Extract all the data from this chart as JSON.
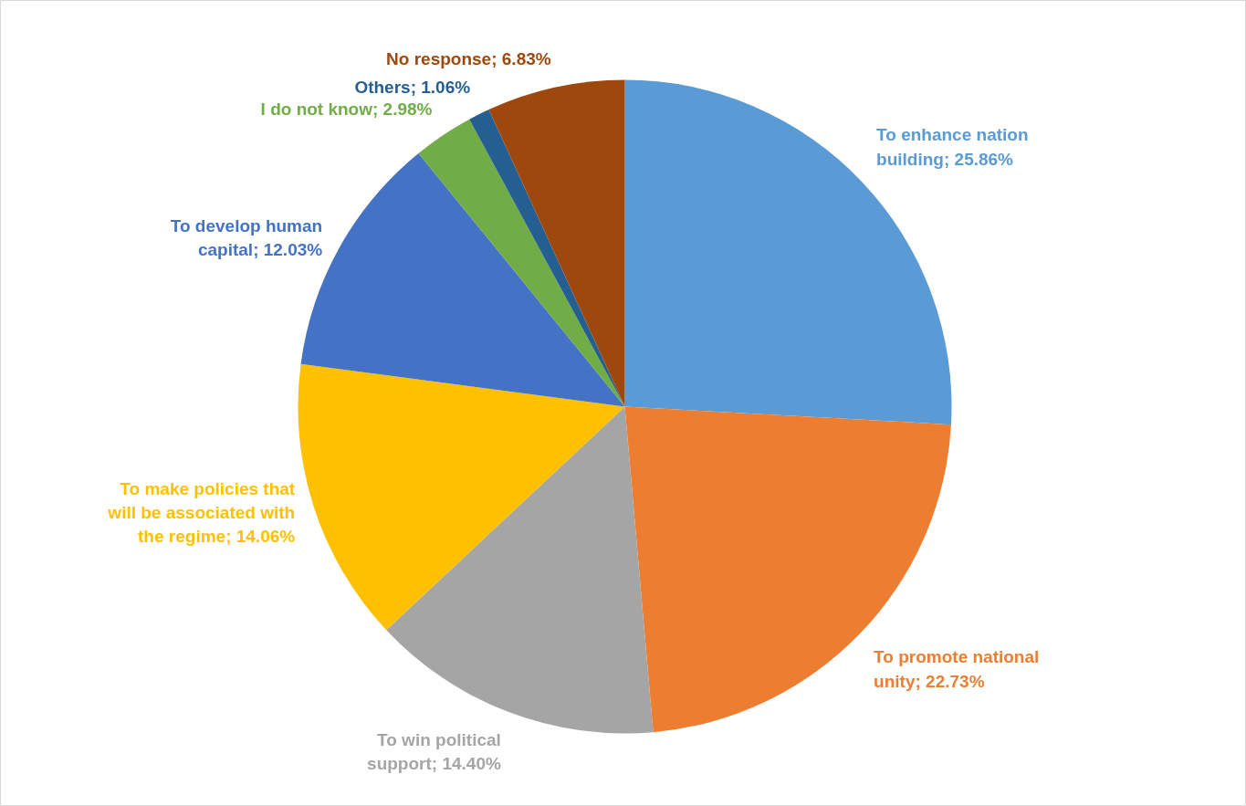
{
  "chart_data": {
    "type": "pie",
    "categories": [
      "To enhance nation building",
      "To promote national unity",
      "To win political support",
      "To make policies that will be associated with the regime",
      "To develop human capital",
      "I do not know",
      "Others",
      "No response"
    ],
    "values": [
      25.86,
      22.73,
      14.4,
      14.06,
      12.03,
      2.98,
      1.06,
      6.83
    ],
    "colors": [
      "#5b9bd5",
      "#ed7d31",
      "#a5a5a5",
      "#ffc000",
      "#4472c4",
      "#70ad47",
      "#255e91",
      "#9e480e"
    ],
    "value_labels": [
      "25.86%",
      "22.73%",
      "14.40%",
      "14.06%",
      "12.03%",
      "2.98%",
      "1.06%",
      "6.83%"
    ]
  }
}
